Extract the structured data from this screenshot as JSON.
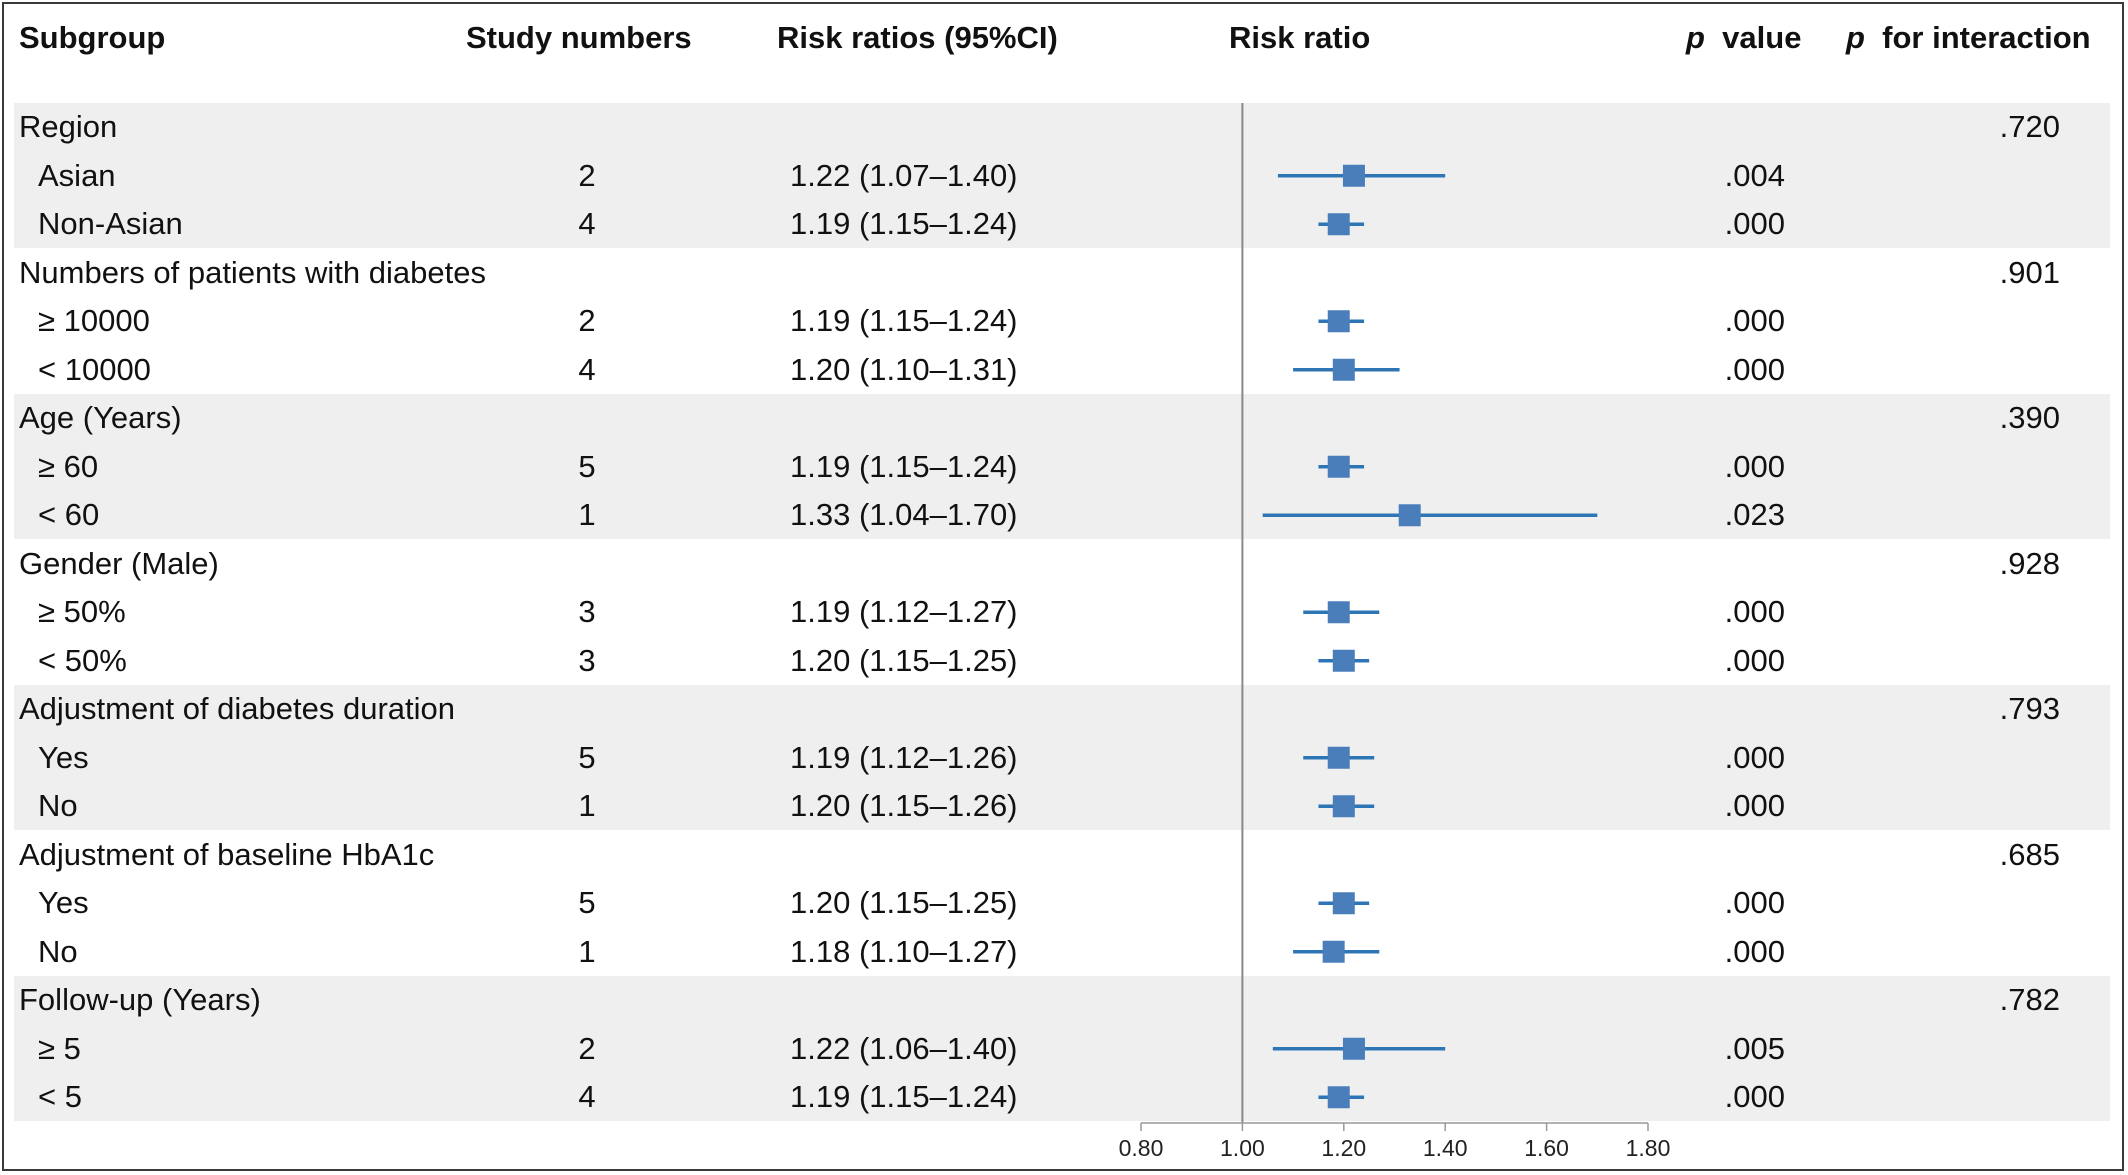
{
  "headers": {
    "subgroup": "Subgroup",
    "study_numbers": "Study numbers",
    "risk_ratios": "Risk ratios (95%CI)",
    "risk_ratio": "Risk ratio",
    "p_value_p": "p",
    "p_value_rest": "value",
    "p_int_p": "p",
    "p_int_rest": "for interaction"
  },
  "colors": {
    "marker": "#4a7ebb",
    "whisker": "#2e75b6",
    "band": "#efefef",
    "axis": "#999999"
  },
  "chart_data": {
    "type": "forest",
    "xlim": [
      0.8,
      1.8
    ],
    "reference_line": 1.0,
    "xticks": [
      "0.80",
      "1.00",
      "1.20",
      "1.40",
      "1.60",
      "1.80"
    ],
    "groups": [
      {
        "label": "Region",
        "p_interaction": ".720",
        "rows": [
          {
            "label": "Asian",
            "n": "2",
            "ci_text": "1.22 (1.07–1.40)",
            "rr": 1.22,
            "lo": 1.07,
            "hi": 1.4,
            "p": ".004"
          },
          {
            "label": "Non-Asian",
            "n": "4",
            "ci_text": "1.19 (1.15–1.24)",
            "rr": 1.19,
            "lo": 1.15,
            "hi": 1.24,
            "p": ".000"
          }
        ]
      },
      {
        "label": "Numbers of patients with diabetes",
        "p_interaction": ".901",
        "rows": [
          {
            "label": "≥ 10000",
            "n": "2",
            "ci_text": "1.19 (1.15–1.24)",
            "rr": 1.19,
            "lo": 1.15,
            "hi": 1.24,
            "p": ".000"
          },
          {
            "label": "< 10000",
            "n": "4",
            "ci_text": "1.20 (1.10–1.31)",
            "rr": 1.2,
            "lo": 1.1,
            "hi": 1.31,
            "p": ".000"
          }
        ]
      },
      {
        "label": "Age (Years)",
        "p_interaction": ".390",
        "rows": [
          {
            "label": "≥ 60",
            "n": "5",
            "ci_text": "1.19 (1.15–1.24)",
            "rr": 1.19,
            "lo": 1.15,
            "hi": 1.24,
            "p": ".000"
          },
          {
            "label": "< 60",
            "n": "1",
            "ci_text": "1.33 (1.04–1.70)",
            "rr": 1.33,
            "lo": 1.04,
            "hi": 1.7,
            "p": ".023"
          }
        ]
      },
      {
        "label": "Gender (Male)",
        "p_interaction": ".928",
        "rows": [
          {
            "label": "≥ 50%",
            "n": "3",
            "ci_text": "1.19 (1.12–1.27)",
            "rr": 1.19,
            "lo": 1.12,
            "hi": 1.27,
            "p": ".000"
          },
          {
            "label": "< 50%",
            "n": "3",
            "ci_text": "1.20 (1.15–1.25)",
            "rr": 1.2,
            "lo": 1.15,
            "hi": 1.25,
            "p": ".000"
          }
        ]
      },
      {
        "label": "Adjustment of diabetes duration",
        "p_interaction": ".793",
        "rows": [
          {
            "label": "Yes",
            "n": "5",
            "ci_text": "1.19 (1.12–1.26)",
            "rr": 1.19,
            "lo": 1.12,
            "hi": 1.26,
            "p": ".000"
          },
          {
            "label": "No",
            "n": "1",
            "ci_text": "1.20 (1.15–1.26)",
            "rr": 1.2,
            "lo": 1.15,
            "hi": 1.26,
            "p": ".000"
          }
        ]
      },
      {
        "label": "Adjustment of baseline HbA1c",
        "p_interaction": ".685",
        "rows": [
          {
            "label": "Yes",
            "n": "5",
            "ci_text": "1.20 (1.15–1.25)",
            "rr": 1.2,
            "lo": 1.15,
            "hi": 1.25,
            "p": ".000"
          },
          {
            "label": "No",
            "n": "1",
            "ci_text": "1.18 (1.10–1.27)",
            "rr": 1.18,
            "lo": 1.1,
            "hi": 1.27,
            "p": ".000"
          }
        ]
      },
      {
        "label": "Follow-up (Years)",
        "p_interaction": ".782",
        "rows": [
          {
            "label": "≥ 5",
            "n": "2",
            "ci_text": "1.22 (1.06–1.40)",
            "rr": 1.22,
            "lo": 1.06,
            "hi": 1.4,
            "p": ".005"
          },
          {
            "label": "< 5",
            "n": "4",
            "ci_text": "1.19 (1.15–1.24)",
            "rr": 1.19,
            "lo": 1.15,
            "hi": 1.24,
            "p": ".000"
          }
        ]
      }
    ]
  }
}
